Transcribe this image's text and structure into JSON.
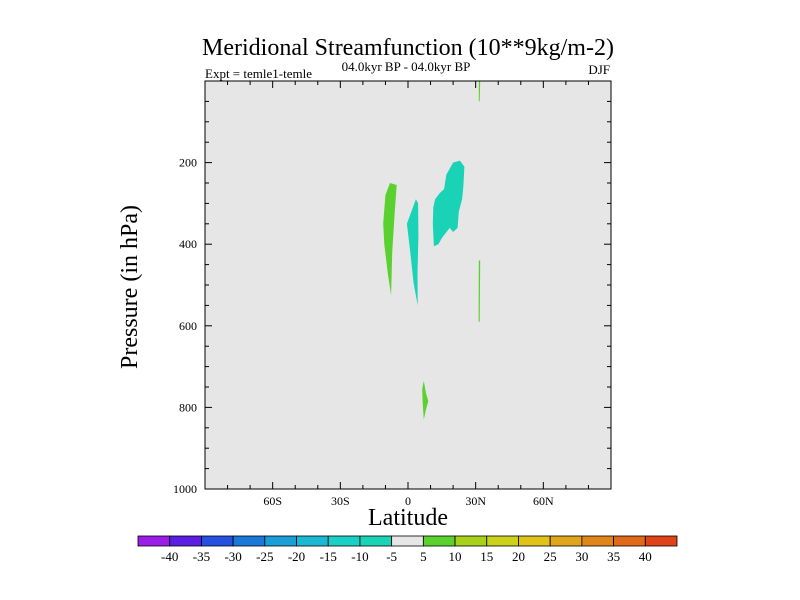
{
  "chart_data": {
    "type": "contour",
    "title": "Meridional Streamfunction (10**9kg/m-2)",
    "subtitle_left": "Expt = temle1-temle",
    "subtitle_center": "04.0kyr BP - 04.0kyr BP",
    "subtitle_right": "DJF",
    "xlabel": "Latitude",
    "ylabel": "Pressure (in hPa)",
    "xlim": [
      -90,
      90
    ],
    "ylim": [
      1000,
      0
    ],
    "x_ticks": [
      {
        "value": -60,
        "label": "60S"
      },
      {
        "value": -30,
        "label": "30S"
      },
      {
        "value": 0,
        "label": "0"
      },
      {
        "value": 30,
        "label": "30N"
      },
      {
        "value": 60,
        "label": "60N"
      }
    ],
    "y_ticks": [
      {
        "value": 200,
        "label": "200"
      },
      {
        "value": 400,
        "label": "400"
      },
      {
        "value": 600,
        "label": "600"
      },
      {
        "value": 800,
        "label": "800"
      },
      {
        "value": 1000,
        "label": "1000"
      }
    ],
    "background_color": "#e6e6e6",
    "regions": [
      {
        "name": "positive-5-10-north-column",
        "color": "#5ad12e",
        "points": [
          [
            31.4,
            0
          ],
          [
            32.0,
            0
          ],
          [
            31.8,
            50
          ],
          [
            31.4,
            50
          ]
        ]
      },
      {
        "name": "positive-5-10-north-column-lower",
        "color": "#5ad12e",
        "points": [
          [
            31.4,
            440
          ],
          [
            32.0,
            440
          ],
          [
            31.8,
            590
          ],
          [
            31.3,
            590
          ]
        ]
      },
      {
        "name": "positive-5-10-tropical",
        "color": "#5ad12e",
        "points": [
          [
            -8,
            250
          ],
          [
            -5,
            255
          ],
          [
            -6,
            330
          ],
          [
            -7,
            420
          ],
          [
            -7.5,
            525
          ],
          [
            -9,
            470
          ],
          [
            -10.5,
            400
          ],
          [
            -11,
            350
          ],
          [
            -10,
            280
          ]
        ]
      },
      {
        "name": "positive-5-10-lower",
        "color": "#5ad12e",
        "points": [
          [
            7,
            735
          ],
          [
            8,
            765
          ],
          [
            9,
            785
          ],
          [
            8,
            805
          ],
          [
            7,
            830
          ],
          [
            6.5,
            790
          ],
          [
            6.3,
            755
          ]
        ]
      },
      {
        "name": "negative-5-10-central",
        "color": "#1ad2b5",
        "points": [
          [
            3.5,
            290
          ],
          [
            4.5,
            300
          ],
          [
            4.6,
            380
          ],
          [
            4.2,
            470
          ],
          [
            4.3,
            550
          ],
          [
            2.5,
            495
          ],
          [
            1,
            420
          ],
          [
            -0.5,
            350
          ]
        ]
      },
      {
        "name": "negative-5-10-north",
        "color": "#1ad2b5",
        "points": [
          [
            20,
            200
          ],
          [
            23,
            195
          ],
          [
            25,
            210
          ],
          [
            24.5,
            260
          ],
          [
            24,
            290
          ],
          [
            22.5,
            320
          ],
          [
            22,
            360
          ],
          [
            20,
            370
          ],
          [
            18.5,
            360
          ],
          [
            15,
            385
          ],
          [
            13.5,
            400
          ],
          [
            11.5,
            405
          ],
          [
            11,
            350
          ],
          [
            11.2,
            310
          ],
          [
            12,
            290
          ],
          [
            14,
            275
          ],
          [
            16,
            265
          ],
          [
            17,
            230
          ]
        ]
      }
    ],
    "colorbar": {
      "labels": [
        "-40",
        "-35",
        "-30",
        "-25",
        "-20",
        "-15",
        "-10",
        "-5",
        "5",
        "10",
        "15",
        "20",
        "25",
        "30",
        "35",
        "40"
      ],
      "colors": [
        "#9b1ee8",
        "#5a1fe3",
        "#2650e0",
        "#1a78d8",
        "#1a9ed7",
        "#1ab8d3",
        "#1ad0c4",
        "#1ad2b5",
        "#e6e6e6",
        "#5ad12e",
        "#a8d21a",
        "#ccd21a",
        "#e0c21a",
        "#e0a51a",
        "#e0851a",
        "#e06a1a",
        "#e0421a"
      ]
    }
  }
}
